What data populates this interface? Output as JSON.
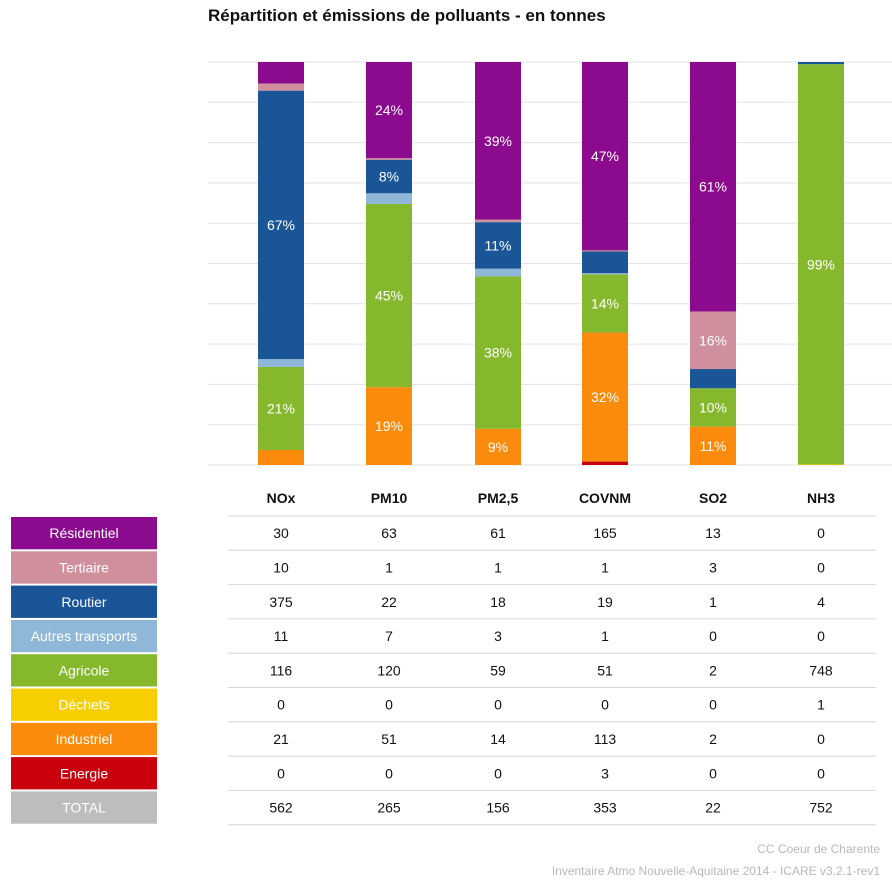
{
  "chart_data": {
    "type": "bar",
    "stacked": "percent",
    "title": "Répartition et émissions de polluants - en tonnes",
    "categories": [
      "NOx",
      "PM10",
      "PM2,5",
      "COVNM",
      "SO2",
      "NH3"
    ],
    "series": [
      {
        "name": "Résidentiel",
        "color": "#8b0a8e",
        "values": [
          30,
          63,
          61,
          165,
          13,
          0
        ]
      },
      {
        "name": "Tertiaire",
        "color": "#d08f9c",
        "values": [
          10,
          1,
          1,
          1,
          3,
          0
        ]
      },
      {
        "name": "Routier",
        "color": "#1a5598",
        "values": [
          375,
          22,
          18,
          19,
          1,
          4
        ]
      },
      {
        "name": "Autres transports",
        "color": "#8fb8d8",
        "values": [
          11,
          7,
          3,
          1,
          0,
          0
        ]
      },
      {
        "name": "Agricole",
        "color": "#86b82e",
        "values": [
          116,
          120,
          59,
          51,
          2,
          748
        ]
      },
      {
        "name": "Déchets",
        "color": "#f7cf00",
        "values": [
          0,
          0,
          0,
          0,
          0,
          1
        ]
      },
      {
        "name": "Industriel",
        "color": "#fa8b0d",
        "values": [
          21,
          51,
          14,
          113,
          2,
          0
        ]
      },
      {
        "name": "Energie",
        "color": "#c9000e",
        "values": [
          0,
          0,
          0,
          3,
          0,
          0
        ]
      }
    ],
    "total_label": "TOTAL",
    "total_color": "#bdbdbd",
    "totals": [
      562,
      265,
      156,
      353,
      22,
      752
    ],
    "segment_labels": [
      {
        "category": "NOx",
        "series": "Routier",
        "text": "67%"
      },
      {
        "category": "NOx",
        "series": "Agricole",
        "text": "21%"
      },
      {
        "category": "PM10",
        "series": "Résidentiel",
        "text": "24%"
      },
      {
        "category": "PM10",
        "series": "Routier",
        "text": "8%"
      },
      {
        "category": "PM10",
        "series": "Agricole",
        "text": "45%"
      },
      {
        "category": "PM10",
        "series": "Industriel",
        "text": "19%"
      },
      {
        "category": "PM2,5",
        "series": "Résidentiel",
        "text": "39%"
      },
      {
        "category": "PM2,5",
        "series": "Routier",
        "text": "11%"
      },
      {
        "category": "PM2,5",
        "series": "Agricole",
        "text": "38%"
      },
      {
        "category": "PM2,5",
        "series": "Industriel",
        "text": "9%"
      },
      {
        "category": "COVNM",
        "series": "Résidentiel",
        "text": "47%"
      },
      {
        "category": "COVNM",
        "series": "Agricole",
        "text": "14%"
      },
      {
        "category": "COVNM",
        "series": "Industriel",
        "text": "32%"
      },
      {
        "category": "SO2",
        "series": "Résidentiel",
        "text": "61%"
      },
      {
        "category": "SO2",
        "series": "Tertiaire",
        "text": "16%"
      },
      {
        "category": "SO2",
        "series": "Agricole",
        "text": "10%"
      },
      {
        "category": "SO2",
        "series": "Industriel",
        "text": "11%"
      },
      {
        "category": "NH3",
        "series": "Agricole",
        "text": "99%"
      }
    ],
    "ylim": [
      0,
      100
    ],
    "grid": true,
    "legend": "left"
  },
  "footer": {
    "line1": "CC Coeur de Charente",
    "line2": "Inventaire Atmo Nouvelle-Aquitaine 2014 - ICARE v3.2.1-rev1"
  }
}
